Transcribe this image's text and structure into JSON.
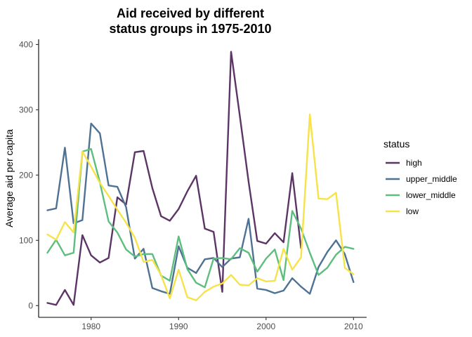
{
  "chart_data": {
    "type": "line",
    "title_lines": [
      "Aid received by different",
      "status groups in 1975-2010"
    ],
    "xlabel": "",
    "ylabel": "Average aid per capita",
    "xlim": [
      1974,
      2011.5
    ],
    "ylim": [
      -18,
      408
    ],
    "x_ticks": [
      1980,
      1990,
      2000,
      2010
    ],
    "y_ticks": [
      0,
      100,
      200,
      300,
      400
    ],
    "grid": false,
    "legend": {
      "title": "status",
      "position": "right"
    },
    "x": [
      1975,
      1976,
      1977,
      1978,
      1979,
      1980,
      1981,
      1982,
      1983,
      1984,
      1985,
      1986,
      1987,
      1988,
      1989,
      1990,
      1991,
      1992,
      1993,
      1994,
      1995,
      1996,
      1997,
      1998,
      1999,
      2000,
      2001,
      2002,
      2003,
      2004,
      2005,
      2006,
      2007,
      2008,
      2009,
      2010
    ],
    "series": [
      {
        "name": "high",
        "color": "#5C3566",
        "values": [
          4,
          1,
          24,
          1,
          108,
          77,
          66,
          73,
          166,
          155,
          235,
          237,
          180,
          137,
          130,
          148,
          175,
          199,
          118,
          113,
          21,
          389,
          291,
          190,
          99,
          95,
          111,
          97,
          203,
          88,
          null,
          null,
          null,
          null,
          null,
          null
        ]
      },
      {
        "name": "upper_middle",
        "color": "#4E7294",
        "values": [
          146,
          149,
          242,
          126,
          131,
          279,
          264,
          184,
          182,
          151,
          72,
          87,
          27,
          22,
          18,
          91,
          58,
          50,
          71,
          73,
          59,
          72,
          74,
          133,
          26,
          24,
          19,
          23,
          42,
          29,
          18,
          59,
          82,
          100,
          79,
          36
        ]
      },
      {
        "name": "lower_middle",
        "color": "#5DBE7E",
        "values": [
          81,
          101,
          77,
          81,
          236,
          240,
          189,
          129,
          112,
          86,
          75,
          79,
          79,
          46,
          38,
          106,
          56,
          35,
          28,
          72,
          73,
          71,
          88,
          81,
          52,
          72,
          86,
          39,
          145,
          118,
          81,
          47,
          58,
          78,
          90,
          87
        ]
      },
      {
        "name": "low",
        "color": "#F7E349",
        "values": [
          109,
          101,
          128,
          112,
          236,
          213,
          188,
          168,
          147,
          127,
          104,
          67,
          70,
          47,
          11,
          55,
          13,
          8,
          21,
          29,
          34,
          47,
          32,
          31,
          42,
          37,
          38,
          87,
          55,
          74,
          293,
          164,
          163,
          173,
          58,
          48
        ]
      }
    ]
  }
}
